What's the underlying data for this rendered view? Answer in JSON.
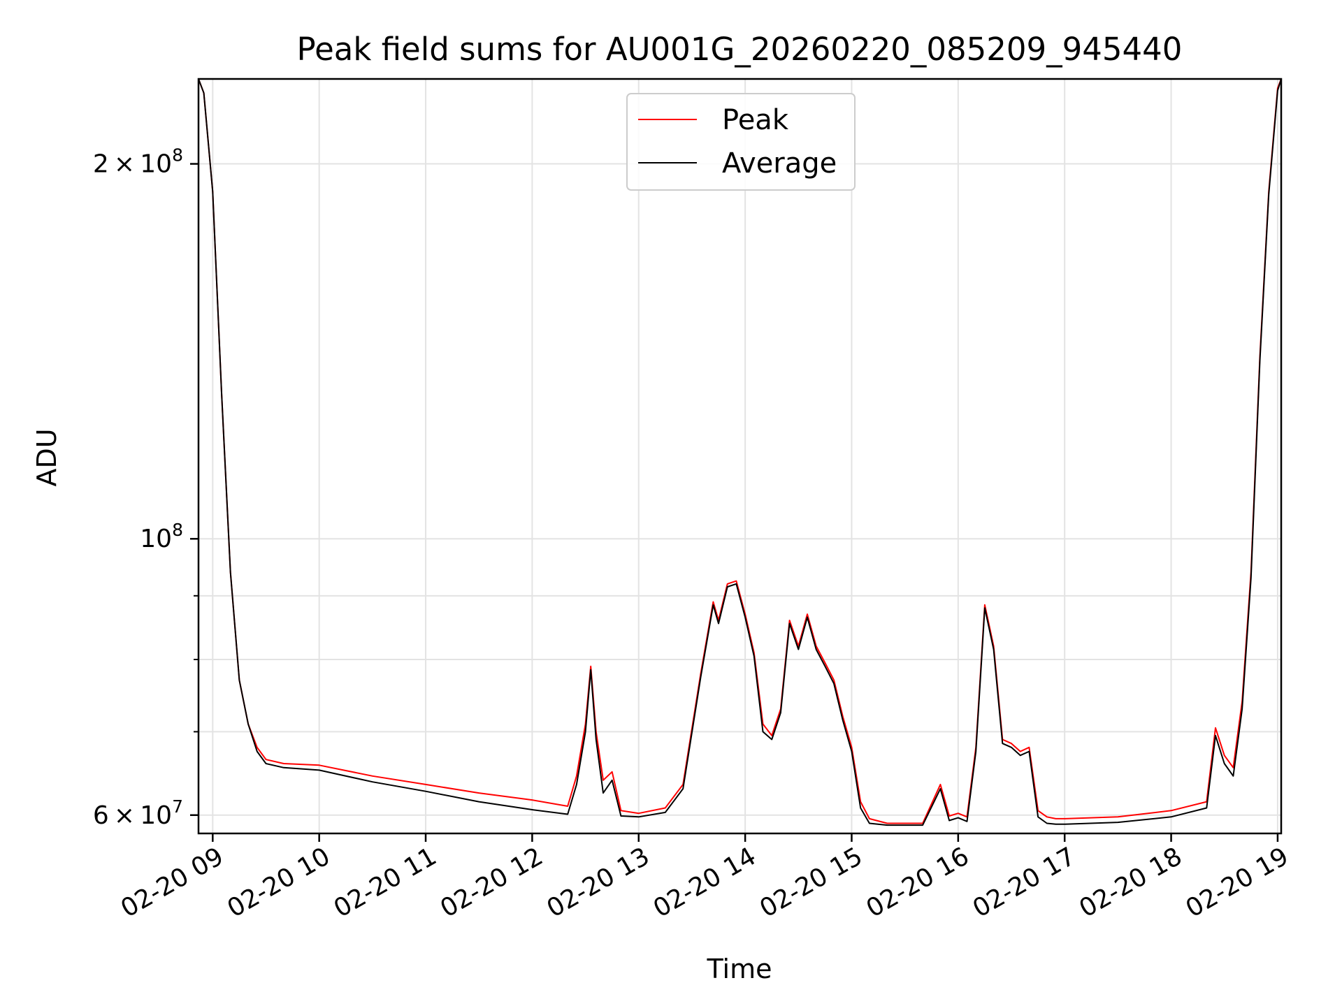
{
  "chart_data": {
    "type": "line",
    "title": "Peak field sums for AU001G_20260220_085209_945440",
    "xlabel": "Time",
    "ylabel": "ADU",
    "yscale": "log",
    "xlim": [
      "2026-02-20 08:52",
      "2026-02-20 19:02"
    ],
    "ylim": [
      58000000,
      234000000
    ],
    "grid": true,
    "legend_position": "top-center",
    "x_ticks": [
      "02-20 09",
      "02-20 10",
      "02-20 11",
      "02-20 12",
      "02-20 13",
      "02-20 14",
      "02-20 15",
      "02-20 16",
      "02-20 17",
      "02-20 18",
      "02-20 19"
    ],
    "y_tick_labels": [
      {
        "value": 200000000,
        "mantissa": "2 × 10",
        "exp": "8"
      },
      {
        "value": 100000000,
        "mantissa": "10",
        "exp": "8"
      },
      {
        "value": 60000000,
        "mantissa": "6 × 10",
        "exp": "7"
      }
    ],
    "y_minor_ticks": [
      70000000,
      80000000,
      90000000
    ],
    "x": [
      "2026-02-20 08:52",
      "2026-02-20 08:55",
      "2026-02-20 09:00",
      "2026-02-20 09:05",
      "2026-02-20 09:10",
      "2026-02-20 09:15",
      "2026-02-20 09:20",
      "2026-02-20 09:25",
      "2026-02-20 09:30",
      "2026-02-20 09:40",
      "2026-02-20 10:00",
      "2026-02-20 10:30",
      "2026-02-20 11:00",
      "2026-02-20 11:30",
      "2026-02-20 12:00",
      "2026-02-20 12:20",
      "2026-02-20 12:25",
      "2026-02-20 12:30",
      "2026-02-20 12:33",
      "2026-02-20 12:36",
      "2026-02-20 12:40",
      "2026-02-20 12:45",
      "2026-02-20 12:50",
      "2026-02-20 13:00",
      "2026-02-20 13:15",
      "2026-02-20 13:25",
      "2026-02-20 13:35",
      "2026-02-20 13:42",
      "2026-02-20 13:45",
      "2026-02-20 13:50",
      "2026-02-20 13:55",
      "2026-02-20 14:00",
      "2026-02-20 14:05",
      "2026-02-20 14:10",
      "2026-02-20 14:15",
      "2026-02-20 14:20",
      "2026-02-20 14:25",
      "2026-02-20 14:30",
      "2026-02-20 14:35",
      "2026-02-20 14:40",
      "2026-02-20 14:45",
      "2026-02-20 14:50",
      "2026-02-20 14:55",
      "2026-02-20 15:00",
      "2026-02-20 15:05",
      "2026-02-20 15:10",
      "2026-02-20 15:20",
      "2026-02-20 15:40",
      "2026-02-20 15:50",
      "2026-02-20 15:55",
      "2026-02-20 16:00",
      "2026-02-20 16:05",
      "2026-02-20 16:10",
      "2026-02-20 16:15",
      "2026-02-20 16:20",
      "2026-02-20 16:25",
      "2026-02-20 16:30",
      "2026-02-20 16:35",
      "2026-02-20 16:40",
      "2026-02-20 16:45",
      "2026-02-20 16:50",
      "2026-02-20 16:55",
      "2026-02-20 17:00",
      "2026-02-20 17:30",
      "2026-02-20 18:00",
      "2026-02-20 18:20",
      "2026-02-20 18:25",
      "2026-02-20 18:30",
      "2026-02-20 18:35",
      "2026-02-20 18:40",
      "2026-02-20 18:45",
      "2026-02-20 18:50",
      "2026-02-20 18:55",
      "2026-02-20 19:00",
      "2026-02-20 19:02"
    ],
    "series": [
      {
        "name": "Peak",
        "color": "#ff0000",
        "values": [
          234000000,
          228000000,
          190000000,
          131000000,
          94000000,
          77000000,
          71000000,
          68000000,
          66500000,
          66000000,
          65800000,
          64500000,
          63500000,
          62500000,
          61700000,
          61000000,
          64500000,
          71000000,
          79000000,
          70000000,
          64000000,
          65000000,
          60500000,
          60200000,
          60800000,
          63500000,
          78000000,
          89000000,
          86000000,
          92000000,
          92500000,
          87000000,
          81000000,
          71000000,
          69500000,
          73000000,
          86000000,
          82000000,
          87000000,
          82000000,
          79500000,
          77000000,
          72000000,
          68000000,
          61500000,
          59600000,
          59100000,
          59100000,
          63500000,
          59900000,
          60200000,
          59800000,
          68000000,
          88500000,
          82000000,
          69000000,
          68500000,
          67500000,
          68000000,
          60500000,
          59800000,
          59600000,
          59600000,
          59800000,
          60500000,
          61500000,
          70500000,
          67000000,
          65500000,
          74000000,
          94000000,
          140000000,
          190000000,
          230000000,
          234000000
        ]
      },
      {
        "name": "Average",
        "color": "#000000",
        "values": [
          234000000,
          228000000,
          190000000,
          131000000,
          94000000,
          77000000,
          71000000,
          67500000,
          66000000,
          65500000,
          65200000,
          63800000,
          62700000,
          61500000,
          60600000,
          60100000,
          63500000,
          70000000,
          78500000,
          69000000,
          62500000,
          64000000,
          59900000,
          59800000,
          60300000,
          63000000,
          77500000,
          88500000,
          85500000,
          91500000,
          92000000,
          86500000,
          80500000,
          70000000,
          69000000,
          72500000,
          85500000,
          81500000,
          86500000,
          81500000,
          79000000,
          76500000,
          71500000,
          67500000,
          60800000,
          59100000,
          58900000,
          58900000,
          63000000,
          59400000,
          59700000,
          59300000,
          67500000,
          88000000,
          81500000,
          68500000,
          68000000,
          67000000,
          67500000,
          59800000,
          59100000,
          59000000,
          59000000,
          59200000,
          59800000,
          60800000,
          69500000,
          66000000,
          64500000,
          73000000,
          93000000,
          139000000,
          189000000,
          229000000,
          234000000
        ]
      }
    ]
  }
}
